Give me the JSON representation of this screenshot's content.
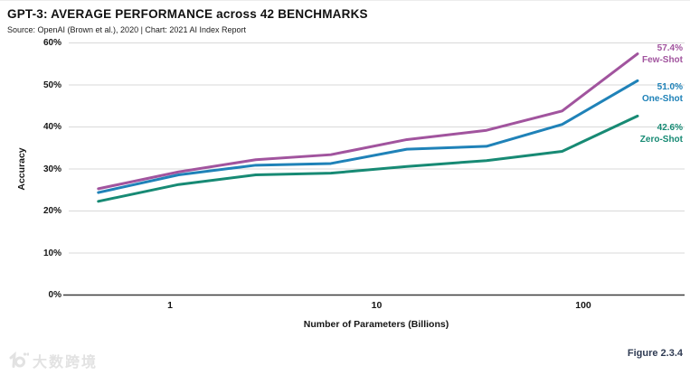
{
  "header": {
    "title": "GPT-3: AVERAGE PERFORMANCE across 42 BENCHMARKS",
    "source": "Source: OpenAI (Brown et al.), 2020 | Chart: 2021 AI Index Report"
  },
  "footer": {
    "figure_label": "Figure 2.3.4",
    "watermark_text": "大数跨境"
  },
  "chart_data": {
    "type": "line",
    "title": "GPT-3: AVERAGE PERFORMANCE across 42 BENCHMARKS",
    "xlabel": "Number of Parameters (Billions)",
    "ylabel": "Accuracy",
    "x_scale": "log",
    "x_ticks": [
      1,
      10,
      100
    ],
    "y_ticks_percent": [
      0,
      10,
      20,
      30,
      40,
      50,
      60
    ],
    "ylim_percent": [
      0,
      60
    ],
    "grid": "horizontal",
    "legend_position": "line-end-labels-right",
    "x_billions_est": [
      0.45,
      1.1,
      2.6,
      6,
      14,
      34,
      79,
      183
    ],
    "series": [
      {
        "name": "Few-Shot",
        "end_label": "57.4%",
        "color": "#a1549e",
        "values_percent": [
          25.3,
          29.3,
          32.2,
          33.4,
          37.0,
          39.2,
          43.8,
          57.4
        ]
      },
      {
        "name": "One-Shot",
        "end_label": "51.0%",
        "color": "#1f82b8",
        "values_percent": [
          24.4,
          28.6,
          30.9,
          31.3,
          34.7,
          35.4,
          40.6,
          51.0
        ]
      },
      {
        "name": "Zero-Shot",
        "end_label": "42.6%",
        "color": "#178a74",
        "values_percent": [
          22.3,
          26.3,
          28.6,
          29.0,
          30.6,
          32.0,
          34.2,
          42.6
        ]
      }
    ]
  },
  "colors": {
    "gridline": "#d9d9d9",
    "axis": "#3c3c3c",
    "text": "#111111",
    "figure_label": "#303c54",
    "watermark": "#e2e2e2"
  }
}
